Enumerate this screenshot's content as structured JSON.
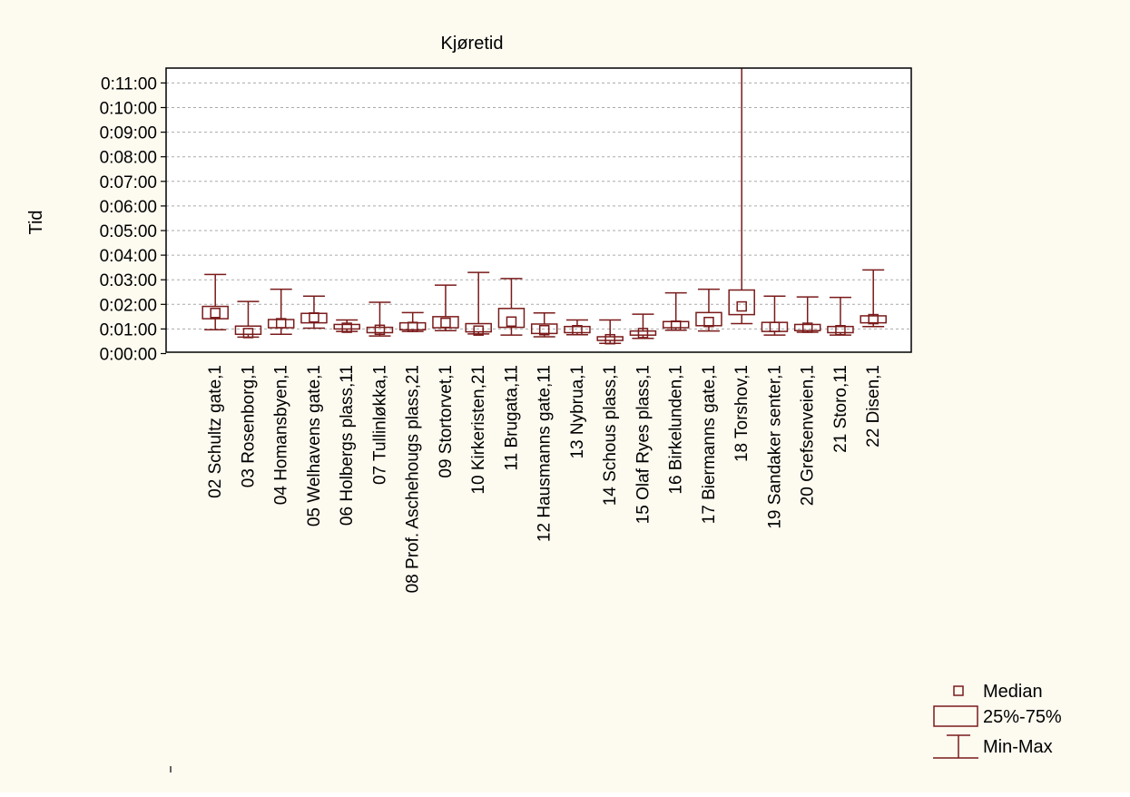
{
  "chart_data": {
    "type": "boxplot",
    "title": "Kjøretid",
    "ylabel": "Tid",
    "xlabel": "",
    "ylim_seconds": [
      0,
      660
    ],
    "yticks": [
      "0:00:00",
      "0:01:00",
      "0:02:00",
      "0:03:00",
      "0:04:00",
      "0:05:00",
      "0:06:00",
      "0:07:00",
      "0:08:00",
      "0:09:00",
      "0:10:00",
      "0:11:00"
    ],
    "grid": "horizontal dashed",
    "legend": {
      "position": "bottom-right",
      "items": [
        {
          "label": "Median",
          "symbol": "median"
        },
        {
          "label": "25%-75%",
          "symbol": "box"
        },
        {
          "label": "Min-Max",
          "symbol": "whisker"
        }
      ]
    },
    "categories": [
      "02 Schultz gate,1",
      "03 Rosenborg,1",
      "04 Homansbyen,1",
      "05 Welhavens gate,1",
      "06 Holbergs plass,11",
      "07 Tullinløkka,1",
      "08 Prof. Aschehougs plass,21",
      "09 Stortorvet,1",
      "10 Kirkeristen,21",
      "11 Brugata,11",
      "12 Hausmanns gate,11",
      "13 Nybrua,1",
      "14 Schous plass,1",
      "15 Olaf Ryes plass,1",
      "16 Birkelunden,1",
      "17 Biermanns gate,1",
      "18 Torshov,1",
      "19 Sandaker senter,1",
      "20 Grefsenveien,1",
      "21 Storo,11",
      "22 Disen,1"
    ],
    "series": [
      {
        "min": [
          58,
          40,
          47,
          62,
          54,
          43,
          54,
          56,
          48,
          45,
          41,
          46,
          25,
          37,
          57,
          55,
          73,
          45,
          52,
          45,
          66
        ],
        "q1": [
          85,
          47,
          63,
          75,
          60,
          51,
          58,
          63,
          53,
          64,
          49,
          51,
          32,
          45,
          63,
          68,
          95,
          54,
          56,
          51,
          75
        ],
        "median": [
          99,
          50,
          74,
          88,
          63,
          58,
          65,
          75,
          56,
          78,
          57,
          57,
          35,
          50,
          68,
          77,
          115,
          65,
          63,
          57,
          84
        ],
        "q3": [
          115,
          67,
          83,
          98,
          71,
          64,
          75,
          90,
          73,
          110,
          72,
          66,
          41,
          55,
          78,
          100,
          155,
          76,
          71,
          66,
          92
        ],
        "max": [
          193,
          127,
          157,
          140,
          82,
          125,
          100,
          167,
          198,
          183,
          99,
          82,
          82,
          96,
          148,
          157,
          700,
          140,
          138,
          137,
          204
        ]
      }
    ],
    "colors": {
      "series": "#7a1a1a",
      "background": "#fdfaf0",
      "plot_background": "#ffffff",
      "grid": "#aaaaaa",
      "axis": "#000000"
    }
  }
}
